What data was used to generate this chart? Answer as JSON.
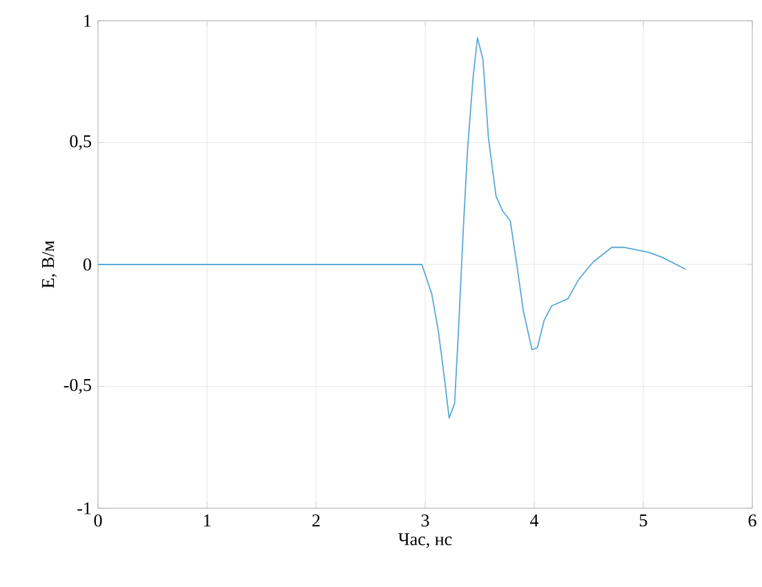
{
  "chart_data": {
    "type": "line",
    "xlabel": "Час, нс",
    "ylabel": "E, В/м",
    "x": [
      0,
      0.5,
      1,
      1.5,
      2,
      2.5,
      2.89,
      2.97,
      3.06,
      3.12,
      3.18,
      3.22,
      3.27,
      3.31,
      3.35,
      3.39,
      3.44,
      3.48,
      3.53,
      3.58,
      3.65,
      3.71,
      3.78,
      3.84,
      3.9,
      3.98,
      4.03,
      4.09,
      4.16,
      4.31,
      4.41,
      4.54,
      4.71,
      4.83,
      5.05,
      5.17,
      5.39
    ],
    "series": [
      {
        "color": "#5aaad6",
        "values": [
          0,
          0,
          0,
          0,
          0,
          0,
          0,
          0,
          -0.12,
          -0.27,
          -0.48,
          -0.63,
          -0.57,
          -0.23,
          0.15,
          0.48,
          0.77,
          0.93,
          0.84,
          0.52,
          0.28,
          0.22,
          0.18,
          0,
          -0.19,
          -0.35,
          -0.34,
          -0.23,
          -0.17,
          -0.14,
          -0.06,
          0.01,
          0.07,
          0.07,
          0.05,
          0.03,
          -0.02
        ]
      }
    ],
    "xlim": [
      0,
      6
    ],
    "xticks": [
      0,
      1,
      2,
      3,
      4,
      5,
      6
    ],
    "ylim": [
      -1,
      1
    ],
    "yticks": [
      -1,
      {
        "value": -0.5,
        "label": "-0,5"
      },
      0,
      {
        "value": 0.5,
        "label": "0,5"
      },
      1
    ],
    "grid": true,
    "marker": "none",
    "line_style": "solid"
  }
}
